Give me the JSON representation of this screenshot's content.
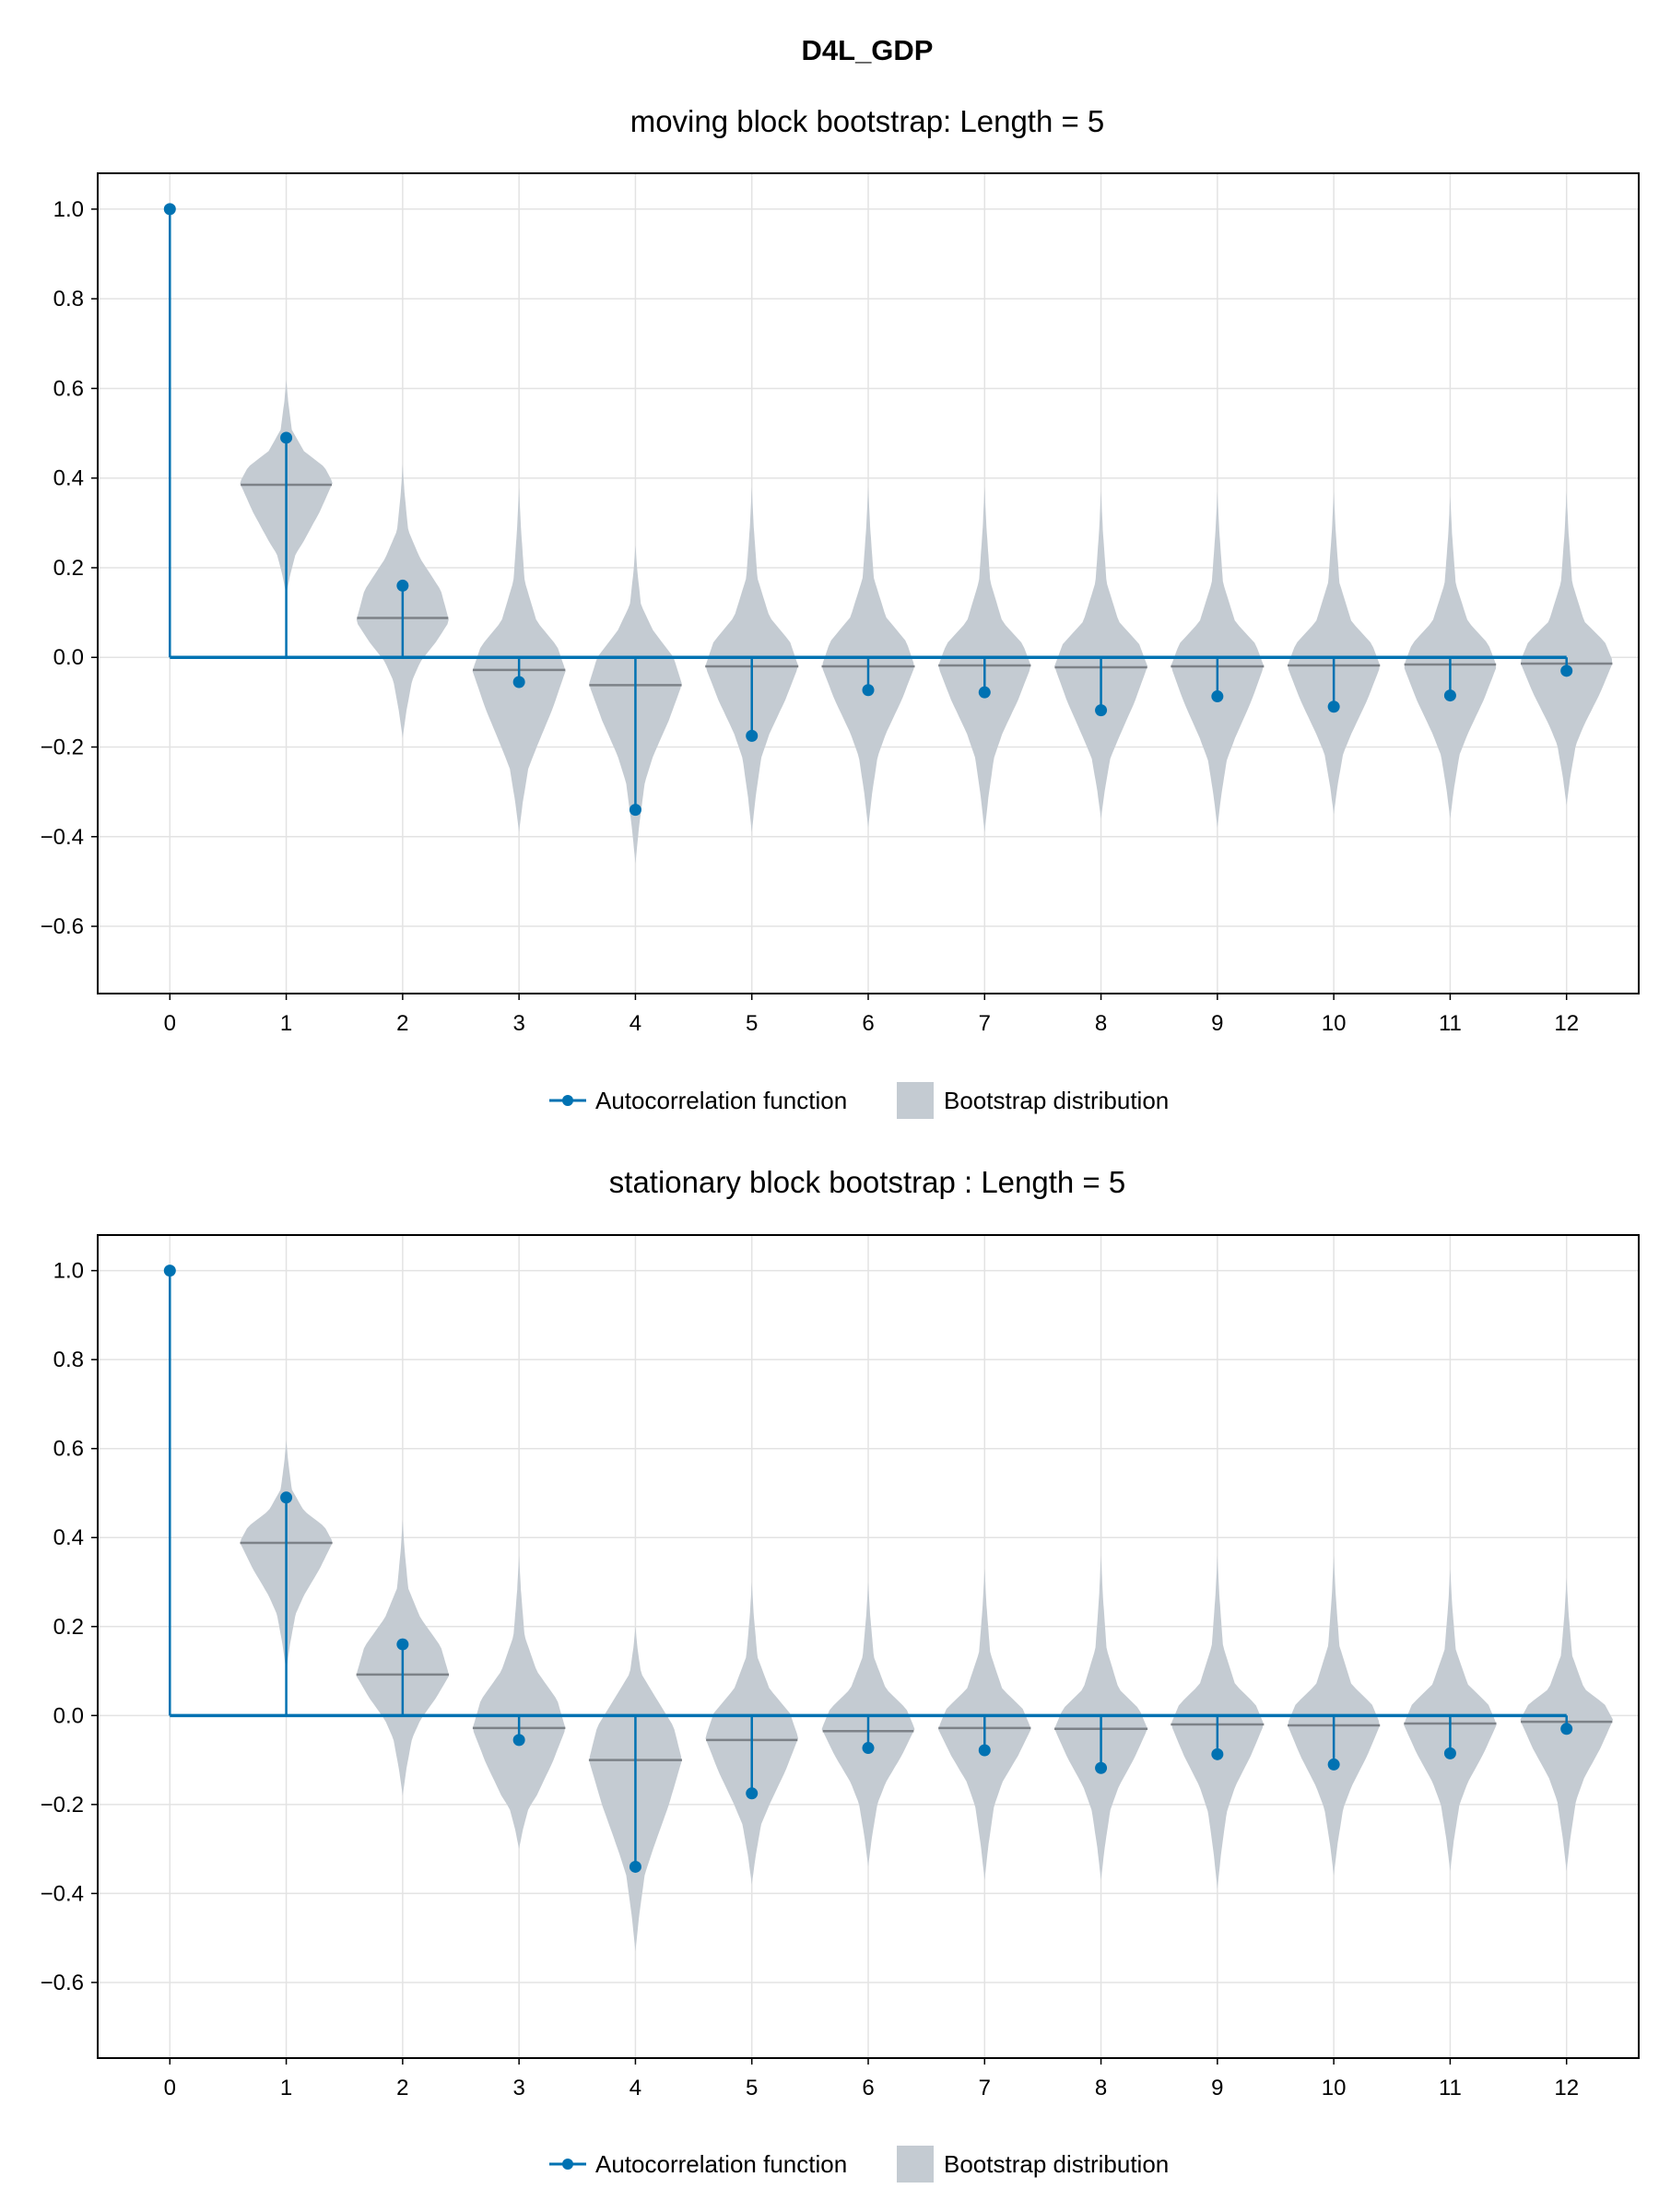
{
  "figure": {
    "title": "D4L_GDP"
  },
  "colors": {
    "acf": "#0072b2",
    "violin": "#c4cbd2",
    "median": "#7d8288",
    "grid": "#e3e3e3",
    "axes": "#000000"
  },
  "chart_data": [
    {
      "type": "violin+stem",
      "title": "moving block bootstrap: Length = 5",
      "xlabel": "",
      "ylabel": "",
      "x": [
        0,
        1,
        2,
        3,
        4,
        5,
        6,
        7,
        8,
        9,
        10,
        11,
        12
      ],
      "xlim": [
        -0.62,
        12.62
      ],
      "ylim": [
        -0.75,
        1.08
      ],
      "yticks": [
        1.0,
        0.8,
        0.6,
        0.4,
        0.2,
        0.0,
        -0.2,
        -0.4,
        -0.6
      ],
      "ytick_labels": [
        "1.0",
        "0.8",
        "0.6",
        "0.4",
        "0.2",
        "0.0",
        "−0.2",
        "−0.4",
        "−0.6"
      ],
      "xtick_labels": [
        "0",
        "1",
        "2",
        "3",
        "4",
        "5",
        "6",
        "7",
        "8",
        "9",
        "10",
        "11",
        "12"
      ],
      "grid": true,
      "legend_position": "bottom-center",
      "series": [
        {
          "name": "Autocorrelation function",
          "kind": "stem",
          "values": [
            1.0,
            0.49,
            0.16,
            -0.055,
            -0.34,
            -0.175,
            -0.073,
            -0.078,
            -0.118,
            -0.087,
            -0.11,
            -0.085,
            -0.03
          ]
        },
        {
          "name": "Bootstrap distribution",
          "kind": "violin",
          "violins": [
            {
              "lag": 1,
              "min": 0.14,
              "max": 0.62,
              "q_low": 0.26,
              "q_high": 0.46,
              "mode": 0.39,
              "median": 0.385
            },
            {
              "lag": 2,
              "min": -0.18,
              "max": 0.43,
              "q_low": -0.01,
              "q_high": 0.22,
              "mode": 0.08,
              "median": 0.088
            },
            {
              "lag": 3,
              "min": -0.39,
              "max": 0.38,
              "q_low": -0.2,
              "q_high": 0.08,
              "mode": -0.03,
              "median": -0.028
            },
            {
              "lag": 4,
              "min": -0.46,
              "max": 0.25,
              "q_low": -0.22,
              "q_high": 0.06,
              "mode": -0.06,
              "median": -0.062
            },
            {
              "lag": 5,
              "min": -0.39,
              "max": 0.38,
              "q_low": -0.17,
              "q_high": 0.09,
              "mode": -0.02,
              "median": -0.02
            },
            {
              "lag": 6,
              "min": -0.38,
              "max": 0.38,
              "q_low": -0.17,
              "q_high": 0.09,
              "mode": -0.02,
              "median": -0.02
            },
            {
              "lag": 7,
              "min": -0.39,
              "max": 0.38,
              "q_low": -0.17,
              "q_high": 0.08,
              "mode": -0.02,
              "median": -0.018
            },
            {
              "lag": 8,
              "min": -0.36,
              "max": 0.37,
              "q_low": -0.18,
              "q_high": 0.08,
              "mode": -0.02,
              "median": -0.022
            },
            {
              "lag": 9,
              "min": -0.38,
              "max": 0.37,
              "q_low": -0.18,
              "q_high": 0.08,
              "mode": -0.02,
              "median": -0.02
            },
            {
              "lag": 10,
              "min": -0.35,
              "max": 0.37,
              "q_low": -0.17,
              "q_high": 0.08,
              "mode": -0.02,
              "median": -0.018
            },
            {
              "lag": 11,
              "min": -0.36,
              "max": 0.36,
              "q_low": -0.17,
              "q_high": 0.08,
              "mode": -0.02,
              "median": -0.016
            },
            {
              "lag": 12,
              "min": -0.33,
              "max": 0.37,
              "q_low": -0.15,
              "q_high": 0.08,
              "mode": -0.01,
              "median": -0.014
            }
          ]
        }
      ]
    },
    {
      "type": "violin+stem",
      "title": "stationary block bootstrap : Length = 5",
      "xlabel": "",
      "ylabel": "",
      "x": [
        0,
        1,
        2,
        3,
        4,
        5,
        6,
        7,
        8,
        9,
        10,
        11,
        12
      ],
      "xlim": [
        -0.62,
        12.62
      ],
      "ylim": [
        -0.77,
        1.08
      ],
      "yticks": [
        1.0,
        0.8,
        0.6,
        0.4,
        0.2,
        0.0,
        -0.2,
        -0.4,
        -0.6
      ],
      "ytick_labels": [
        "1.0",
        "0.8",
        "0.6",
        "0.4",
        "0.2",
        "0.0",
        "−0.2",
        "−0.4",
        "−0.6"
      ],
      "xtick_labels": [
        "0",
        "1",
        "2",
        "3",
        "4",
        "5",
        "6",
        "7",
        "8",
        "9",
        "10",
        "11",
        "12"
      ],
      "grid": true,
      "legend_position": "bottom-center",
      "series": [
        {
          "name": "Autocorrelation function",
          "kind": "stem",
          "values": [
            1.0,
            0.49,
            0.16,
            -0.055,
            -0.34,
            -0.175,
            -0.073,
            -0.078,
            -0.118,
            -0.087,
            -0.11,
            -0.085,
            -0.03
          ]
        },
        {
          "name": "Bootstrap distribution",
          "kind": "violin",
          "violins": [
            {
              "lag": 1,
              "min": 0.1,
              "max": 0.62,
              "q_low": 0.27,
              "q_high": 0.46,
              "mode": 0.39,
              "median": 0.388
            },
            {
              "lag": 2,
              "min": -0.18,
              "max": 0.44,
              "q_low": -0.01,
              "q_high": 0.22,
              "mode": 0.09,
              "median": 0.092
            },
            {
              "lag": 3,
              "min": -0.3,
              "max": 0.36,
              "q_low": -0.18,
              "q_high": 0.1,
              "mode": -0.03,
              "median": -0.028
            },
            {
              "lag": 4,
              "min": -0.53,
              "max": 0.2,
              "q_low": -0.3,
              "q_high": 0.05,
              "mode": -0.1,
              "median": -0.1
            },
            {
              "lag": 5,
              "min": -0.38,
              "max": 0.3,
              "q_low": -0.2,
              "q_high": 0.06,
              "mode": -0.05,
              "median": -0.055
            },
            {
              "lag": 6,
              "min": -0.34,
              "max": 0.3,
              "q_low": -0.15,
              "q_high": 0.06,
              "mode": -0.03,
              "median": -0.035
            },
            {
              "lag": 7,
              "min": -0.37,
              "max": 0.33,
              "q_low": -0.15,
              "q_high": 0.06,
              "mode": -0.03,
              "median": -0.028
            },
            {
              "lag": 8,
              "min": -0.37,
              "max": 0.36,
              "q_low": -0.16,
              "q_high": 0.06,
              "mode": -0.03,
              "median": -0.03
            },
            {
              "lag": 9,
              "min": -0.39,
              "max": 0.36,
              "q_low": -0.16,
              "q_high": 0.07,
              "mode": -0.02,
              "median": -0.02
            },
            {
              "lag": 10,
              "min": -0.36,
              "max": 0.36,
              "q_low": -0.16,
              "q_high": 0.07,
              "mode": -0.02,
              "median": -0.022
            },
            {
              "lag": 11,
              "min": -0.35,
              "max": 0.33,
              "q_low": -0.15,
              "q_high": 0.07,
              "mode": -0.02,
              "median": -0.018
            },
            {
              "lag": 12,
              "min": -0.35,
              "max": 0.31,
              "q_low": -0.14,
              "q_high": 0.06,
              "mode": -0.01,
              "median": -0.014
            }
          ]
        }
      ]
    }
  ],
  "legend": {
    "acf_label": "Autocorrelation function",
    "bootstrap_label": "Bootstrap distribution"
  }
}
